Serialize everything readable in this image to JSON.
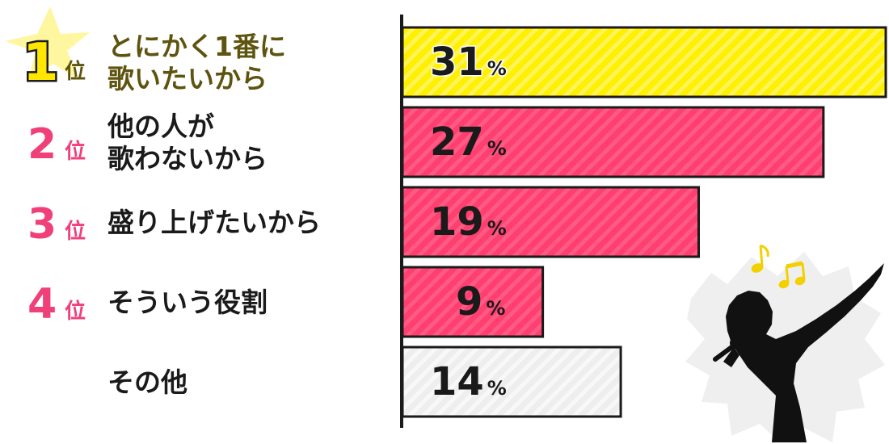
{
  "chart_data": {
    "type": "bar",
    "orientation": "horizontal",
    "categories": [
      "とにかく1番に歌いたいから",
      "他の人が歌わないから",
      "盛り上げたいから",
      "そういう役割",
      "その他"
    ],
    "category_lines": [
      [
        "とにかく1番に",
        "歌いたいから"
      ],
      [
        "他の人が",
        "歌わないから"
      ],
      [
        "盛り上げたいから"
      ],
      [
        "そういう役割"
      ],
      [
        "その他"
      ]
    ],
    "ranks": [
      "1",
      "2",
      "3",
      "4",
      ""
    ],
    "rank_suffix": "位",
    "values": [
      31,
      27,
      19,
      9,
      14
    ],
    "value_labels": [
      "31",
      "27",
      "19",
      "9",
      "14"
    ],
    "unit": "%",
    "xlim": [
      0,
      31
    ],
    "grid": false,
    "legend": "none"
  },
  "colors": {
    "first_bar": "#fff000",
    "ranked_bar": "#ff3f6f",
    "other_bar": "#eeeeee",
    "rank_pink": "#f0407a",
    "rank1_gold": "#ffe600",
    "rank1_label": "#5e5410",
    "star": "#fff6a0",
    "text": "#1a1a1a",
    "axis": "#1a1a1a"
  },
  "decorations": {
    "star_icon": "star-icon",
    "singer_icon": "karaoke-singer-icon",
    "note_icon": "music-note-icon"
  }
}
